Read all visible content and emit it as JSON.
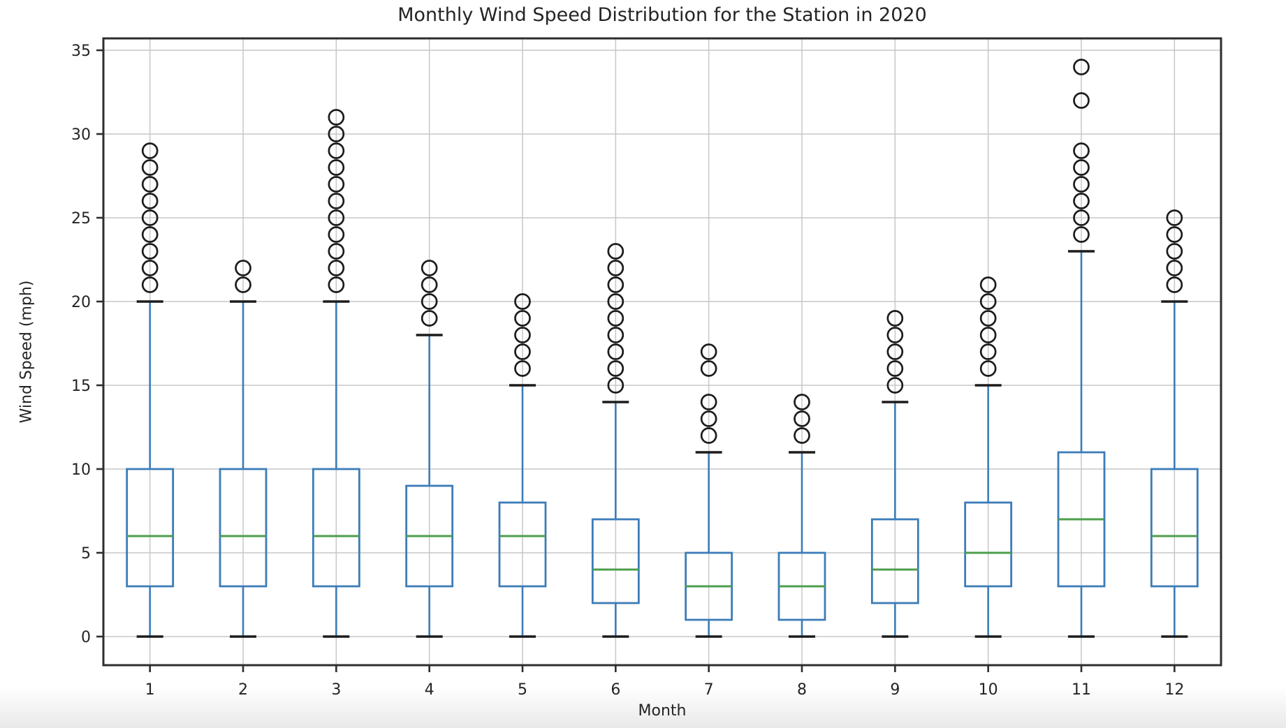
{
  "chart_data": {
    "type": "boxplot",
    "title": "Monthly Wind Speed Distribution for the Station in 2020",
    "xlabel": "Month",
    "ylabel": "Wind Speed (mph)",
    "x_ticks": [
      "1",
      "2",
      "3",
      "4",
      "5",
      "6",
      "7",
      "8",
      "9",
      "10",
      "11",
      "12"
    ],
    "y_ticks": [
      0,
      5,
      10,
      15,
      20,
      25,
      30,
      35
    ],
    "xlim": [
      0.5,
      12.5
    ],
    "ylim": [
      -1.7,
      35.7
    ],
    "grid": true,
    "legend": false,
    "series": [
      {
        "month": 1,
        "label": "1",
        "whisker_low": 0,
        "q1": 3,
        "median": 6,
        "q3": 10,
        "whisker_high": 20,
        "outliers": [
          21,
          22,
          23,
          24,
          25,
          26,
          27,
          28,
          29
        ]
      },
      {
        "month": 2,
        "label": "2",
        "whisker_low": 0,
        "q1": 3,
        "median": 6,
        "q3": 10,
        "whisker_high": 20,
        "outliers": [
          21,
          22
        ]
      },
      {
        "month": 3,
        "label": "3",
        "whisker_low": 0,
        "q1": 3,
        "median": 6,
        "q3": 10,
        "whisker_high": 20,
        "outliers": [
          21,
          22,
          23,
          24,
          25,
          26,
          27,
          28,
          29,
          30,
          31
        ]
      },
      {
        "month": 4,
        "label": "4",
        "whisker_low": 0,
        "q1": 3,
        "median": 6,
        "q3": 9,
        "whisker_high": 18,
        "outliers": [
          19,
          20,
          21,
          22
        ]
      },
      {
        "month": 5,
        "label": "5",
        "whisker_low": 0,
        "q1": 3,
        "median": 6,
        "q3": 8,
        "whisker_high": 15,
        "outliers": [
          16,
          17,
          18,
          19,
          20
        ]
      },
      {
        "month": 6,
        "label": "6",
        "whisker_low": 0,
        "q1": 2,
        "median": 4,
        "q3": 7,
        "whisker_high": 14,
        "outliers": [
          15,
          16,
          17,
          18,
          19,
          20,
          21,
          22,
          23
        ]
      },
      {
        "month": 7,
        "label": "7",
        "whisker_low": 0,
        "q1": 1,
        "median": 3,
        "q3": 5,
        "whisker_high": 11,
        "outliers": [
          12,
          13,
          14,
          16,
          17
        ]
      },
      {
        "month": 8,
        "label": "8",
        "whisker_low": 0,
        "q1": 1,
        "median": 3,
        "q3": 5,
        "whisker_high": 11,
        "outliers": [
          12,
          13,
          14
        ]
      },
      {
        "month": 9,
        "label": "9",
        "whisker_low": 0,
        "q1": 2,
        "median": 4,
        "q3": 7,
        "whisker_high": 14,
        "outliers": [
          15,
          16,
          17,
          18,
          19
        ]
      },
      {
        "month": 10,
        "label": "10",
        "whisker_low": 0,
        "q1": 3,
        "median": 5,
        "q3": 8,
        "whisker_high": 15,
        "outliers": [
          16,
          17,
          18,
          19,
          20,
          21
        ]
      },
      {
        "month": 11,
        "label": "11",
        "whisker_low": 0,
        "q1": 3,
        "median": 7,
        "q3": 11,
        "whisker_high": 23,
        "outliers": [
          24,
          25,
          26,
          27,
          28,
          29,
          32,
          34
        ]
      },
      {
        "month": 12,
        "label": "12",
        "whisker_low": 0,
        "q1": 3,
        "median": 6,
        "q3": 10,
        "whisker_high": 20,
        "outliers": [
          21,
          22,
          23,
          24,
          25
        ]
      }
    ],
    "colors": {
      "box": "#3c7cb8",
      "whisker": "#3c7cb8",
      "median": "#4d9e4d",
      "cap": "#1c1c1c",
      "outlier": "#1c1c1c",
      "grid": "#c7c7c7",
      "spine": "#2e2e2e",
      "text": "#242424",
      "background": "#ffffff"
    }
  }
}
